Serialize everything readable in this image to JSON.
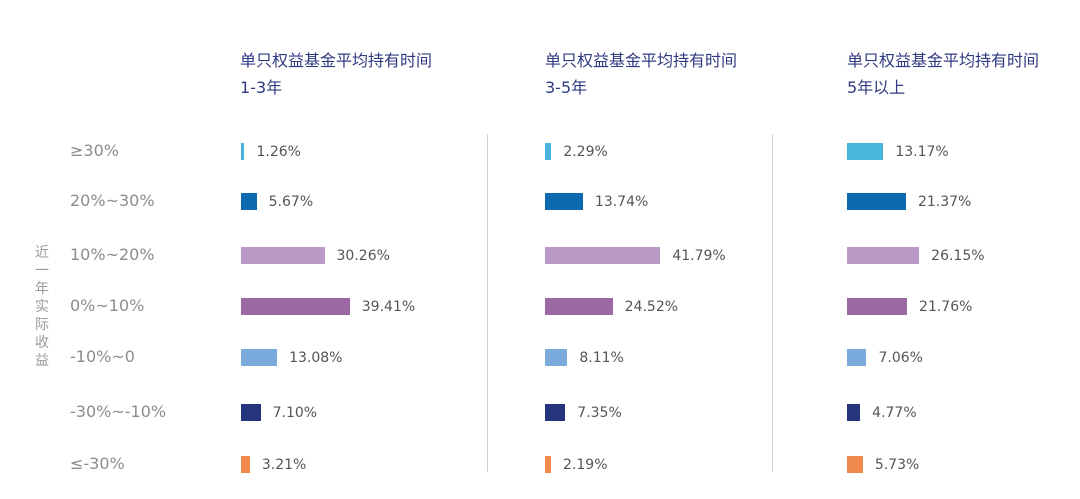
{
  "chart_data": {
    "type": "bar",
    "orientation": "horizontal",
    "ylabel": "近一年实际收益",
    "categories": [
      "≥30%",
      "20%~30%",
      "10%~20%",
      "0%~10%",
      "-10%~0",
      "-30%~-10%",
      "≤-30%"
    ],
    "category_colors": [
      "#49b5dc",
      "#0a6aad",
      "#bb99c6",
      "#9b68a4",
      "#7aa9dc",
      "#24357d",
      "#ef8a4c"
    ],
    "panels": [
      {
        "title_line1": "单只权益基金平均持有时间",
        "title_line2": "1-3年",
        "values": [
          1.26,
          5.67,
          30.26,
          39.41,
          13.08,
          7.1,
          3.21
        ],
        "labels": [
          "1.26%",
          "5.67%",
          "30.26%",
          "39.41%",
          "13.08%",
          "7.10%",
          "3.21%"
        ]
      },
      {
        "title_line1": "单只权益基金平均持有时间",
        "title_line2": "3-5年",
        "values": [
          2.29,
          13.74,
          41.79,
          24.52,
          8.11,
          7.35,
          2.19
        ],
        "labels": [
          "2.29%",
          "13.74%",
          "41.79%",
          "24.52%",
          "8.11%",
          "7.35%",
          "2.19%"
        ]
      },
      {
        "title_line1": "单只权益基金平均持有时间",
        "title_line2": "5年以上",
        "values": [
          13.17,
          21.37,
          26.15,
          21.76,
          7.06,
          4.77,
          5.73
        ],
        "labels": [
          "13.17%",
          "21.37%",
          "26.15%",
          "21.76%",
          "7.06%",
          "4.77%",
          "5.73%"
        ]
      }
    ],
    "xlim": [
      0,
      45
    ],
    "grid": false,
    "legend": "none"
  }
}
